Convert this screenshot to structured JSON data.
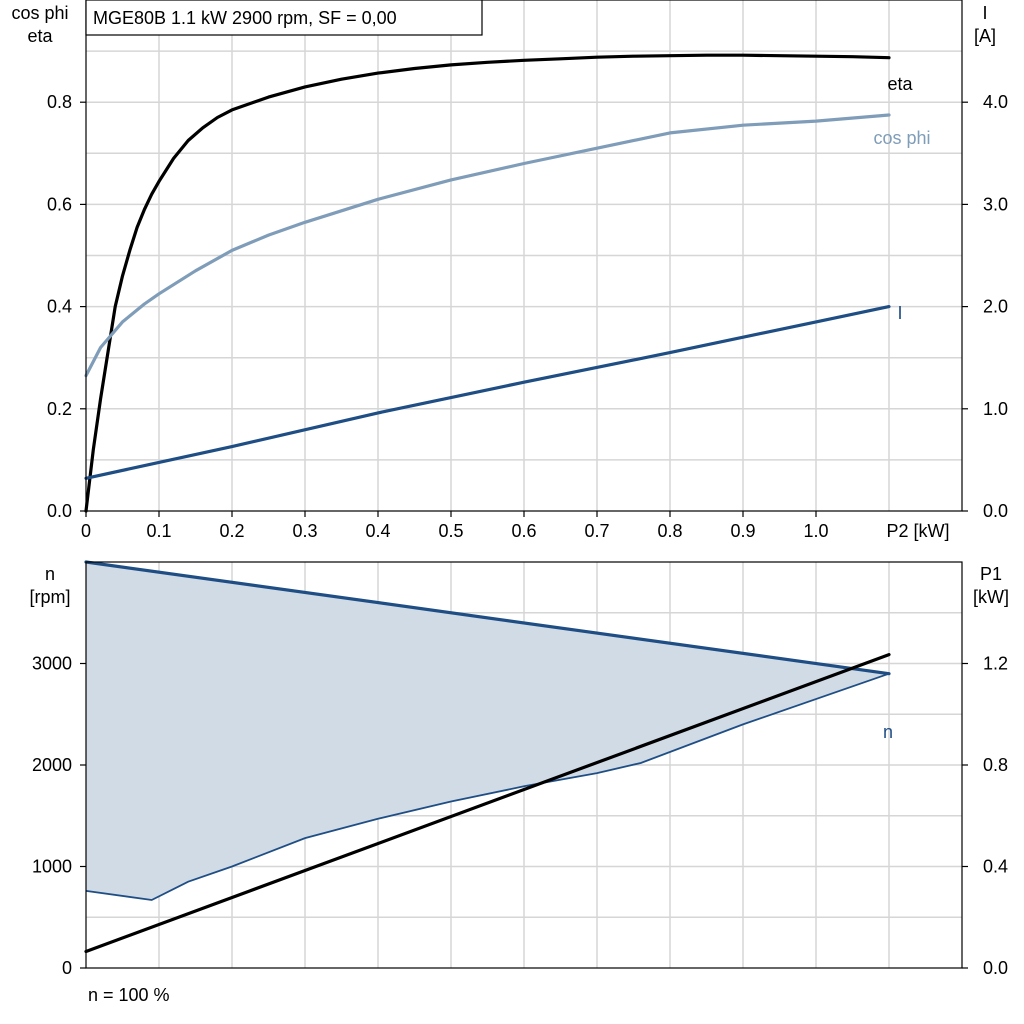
{
  "chart_data": [
    {
      "type": "line",
      "title": "MGE80B   1.1 kW   2900 rpm, SF = 0,00",
      "xlabel": "P2 [kW]",
      "xlim": [
        0,
        1.2
      ],
      "x_ticks": [
        "0",
        "0.1",
        "0.2",
        "0.3",
        "0.4",
        "0.5",
        "0.6",
        "0.7",
        "0.8",
        "0.9",
        "1.0"
      ],
      "ylabel_left": [
        "cos phi",
        "eta"
      ],
      "ylim_left": [
        0,
        1.0
      ],
      "y_ticks_left": [
        "0.0",
        "0.2",
        "0.4",
        "0.6",
        "0.8"
      ],
      "ylabel_right": [
        "I",
        "[A]"
      ],
      "ylim_right": [
        0,
        5.0
      ],
      "y_ticks_right": [
        "0.0",
        "1.0",
        "2.0",
        "3.0",
        "4.0"
      ],
      "grid": true,
      "series": [
        {
          "name": "eta",
          "axis": "left",
          "color": "#000000",
          "x": [
            0,
            0.01,
            0.02,
            0.03,
            0.04,
            0.05,
            0.06,
            0.07,
            0.08,
            0.09,
            0.1,
            0.12,
            0.14,
            0.16,
            0.18,
            0.2,
            0.25,
            0.3,
            0.35,
            0.4,
            0.45,
            0.5,
            0.55,
            0.6,
            0.65,
            0.7,
            0.75,
            0.8,
            0.85,
            0.9,
            0.95,
            1.0,
            1.05,
            1.1
          ],
          "y": [
            0.0,
            0.12,
            0.22,
            0.31,
            0.4,
            0.46,
            0.51,
            0.555,
            0.59,
            0.62,
            0.645,
            0.69,
            0.725,
            0.75,
            0.77,
            0.785,
            0.81,
            0.83,
            0.845,
            0.857,
            0.866,
            0.873,
            0.878,
            0.882,
            0.885,
            0.888,
            0.89,
            0.891,
            0.892,
            0.892,
            0.891,
            0.89,
            0.889,
            0.887
          ]
        },
        {
          "name": "cos phi",
          "axis": "left",
          "color": "#7f9db9",
          "x": [
            0,
            0.02,
            0.05,
            0.08,
            0.1,
            0.15,
            0.2,
            0.25,
            0.3,
            0.4,
            0.5,
            0.6,
            0.7,
            0.8,
            0.9,
            1.0,
            1.1
          ],
          "y": [
            0.265,
            0.32,
            0.37,
            0.405,
            0.425,
            0.47,
            0.51,
            0.54,
            0.565,
            0.61,
            0.648,
            0.68,
            0.71,
            0.74,
            0.755,
            0.763,
            0.775
          ]
        },
        {
          "name": "I",
          "axis": "right",
          "color": "#1f4e85",
          "x": [
            0,
            0.2,
            0.4,
            0.6,
            0.8,
            1.0,
            1.1
          ],
          "y": [
            0.32,
            0.63,
            0.96,
            1.26,
            1.55,
            1.85,
            2.0
          ]
        }
      ]
    },
    {
      "type": "area",
      "xlim": [
        0,
        1.2
      ],
      "ylabel_left": [
        "n",
        "[rpm]"
      ],
      "ylim_left": [
        0,
        4000
      ],
      "y_ticks_left": [
        "0",
        "1000",
        "2000",
        "3000"
      ],
      "ylabel_right": [
        "P1",
        "[kW]"
      ],
      "ylim_right": [
        0,
        1.6
      ],
      "y_ticks_right": [
        "0.0",
        "0.4",
        "0.8",
        "1.2"
      ],
      "grid": true,
      "footer": "n = 100 %",
      "band": {
        "color": "#d0dbe6",
        "upper": {
          "x": [
            0,
            1.1
          ],
          "y": [
            4000,
            2900
          ]
        },
        "lower": {
          "x": [
            0,
            0.09,
            0.14,
            0.2,
            0.3,
            0.4,
            0.5,
            0.6,
            0.7,
            0.76,
            0.9,
            1.1
          ],
          "y": [
            760,
            670,
            850,
            1000,
            1280,
            1470,
            1640,
            1790,
            1920,
            2020,
            2400,
            2900
          ]
        }
      },
      "series": [
        {
          "name": "n",
          "axis": "left",
          "color": "#1f4e85",
          "x": [
            0,
            1.1
          ],
          "y": [
            4000,
            2900
          ]
        },
        {
          "name": "P1",
          "axis": "right",
          "color": "#000000",
          "x": [
            0,
            1.1
          ],
          "y": [
            0.065,
            1.235
          ]
        }
      ]
    }
  ]
}
